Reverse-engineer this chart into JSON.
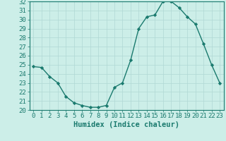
{
  "xlabel": "Humidex (Indice chaleur)",
  "ylabel": "",
  "x": [
    0,
    1,
    2,
    3,
    4,
    5,
    6,
    7,
    8,
    9,
    10,
    11,
    12,
    13,
    14,
    15,
    16,
    17,
    18,
    19,
    20,
    21,
    22,
    23
  ],
  "y": [
    24.8,
    24.7,
    23.7,
    23.0,
    21.5,
    20.8,
    20.5,
    20.3,
    20.3,
    20.5,
    22.5,
    23.0,
    25.5,
    29.0,
    30.3,
    30.5,
    32.0,
    32.0,
    31.3,
    30.3,
    29.5,
    27.3,
    25.0,
    23.0
  ],
  "line_color": "#1a7a6e",
  "marker": "D",
  "marker_size": 2.2,
  "bg_color": "#cceee8",
  "grid_color": "#b0d8d4",
  "ylim": [
    20,
    32
  ],
  "xlim": [
    -0.5,
    23.5
  ],
  "yticks": [
    20,
    21,
    22,
    23,
    24,
    25,
    26,
    27,
    28,
    29,
    30,
    31,
    32
  ],
  "xticks": [
    0,
    1,
    2,
    3,
    4,
    5,
    6,
    7,
    8,
    9,
    10,
    11,
    12,
    13,
    14,
    15,
    16,
    17,
    18,
    19,
    20,
    21,
    22,
    23
  ],
  "tick_fontsize": 6.5,
  "xlabel_fontsize": 7.5,
  "tick_color": "#1a7a6e",
  "axis_color": "#1a7a6e",
  "linewidth": 1.0
}
